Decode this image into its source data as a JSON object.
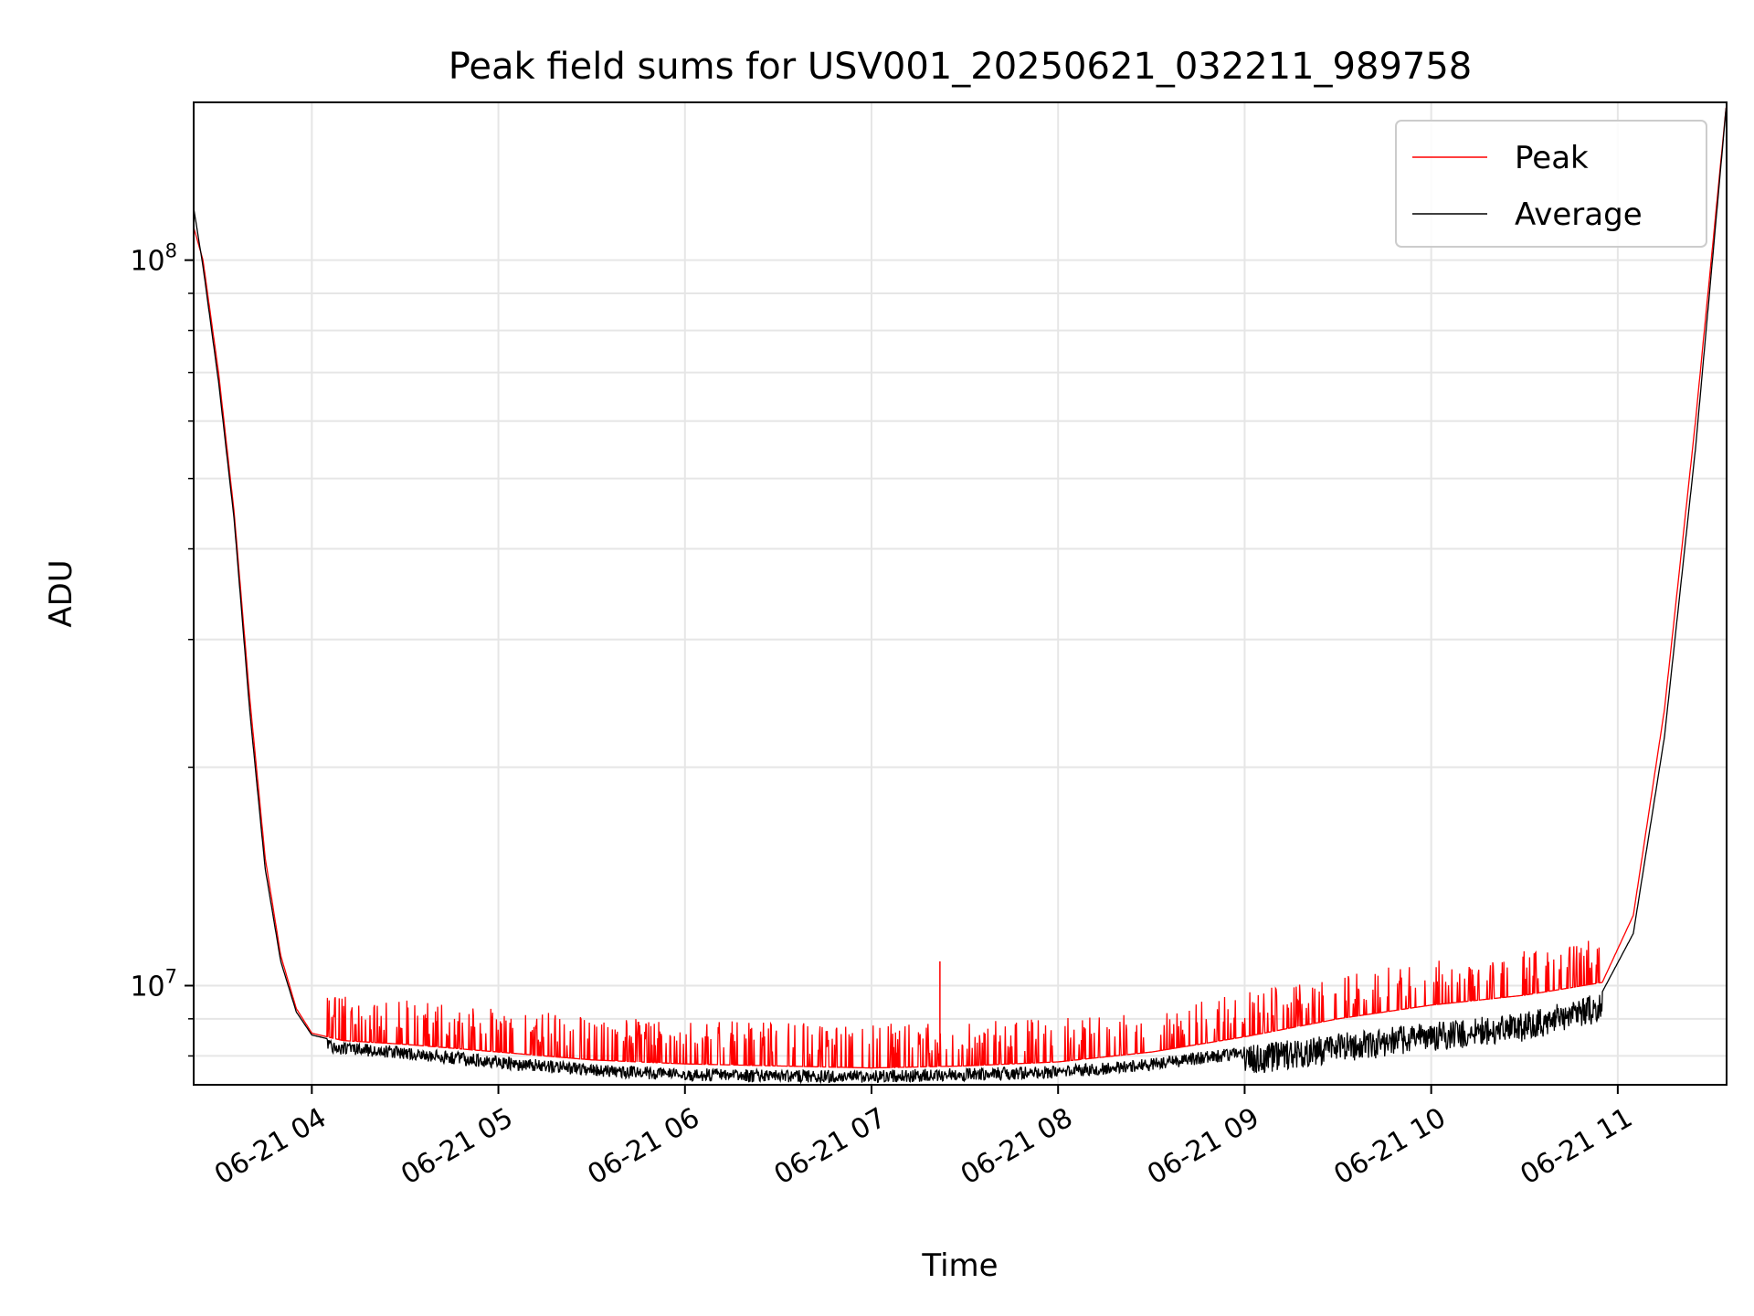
{
  "chart_data": {
    "type": "line",
    "title": "Peak field sums for USV001_20250621_032211_989758",
    "xlabel": "Time",
    "ylabel": "ADU",
    "yscale": "log",
    "grid": true,
    "legend_position": "top-right",
    "xlim": [
      "2025-06-21 03:22",
      "2025-06-21 11:35"
    ],
    "ylim": [
      7300000,
      165000000
    ],
    "x_ticks": [
      {
        "value": "2025-06-21 04:00",
        "label": "06-21 04"
      },
      {
        "value": "2025-06-21 05:00",
        "label": "06-21 05"
      },
      {
        "value": "2025-06-21 06:00",
        "label": "06-21 06"
      },
      {
        "value": "2025-06-21 07:00",
        "label": "06-21 07"
      },
      {
        "value": "2025-06-21 08:00",
        "label": "06-21 08"
      },
      {
        "value": "2025-06-21 09:00",
        "label": "06-21 09"
      },
      {
        "value": "2025-06-21 10:00",
        "label": "06-21 10"
      },
      {
        "value": "2025-06-21 11:00",
        "label": "06-21 11"
      }
    ],
    "y_ticks": [
      {
        "value": 10000000,
        "base": "10",
        "exp": "7"
      },
      {
        "value": 100000000,
        "base": "10",
        "exp": "8"
      }
    ],
    "series": [
      {
        "name": "Peak",
        "color": "#ff0000",
        "x": [
          "2025-06-21 03:22",
          "2025-06-21 03:25",
          "2025-06-21 03:30",
          "2025-06-21 03:35",
          "2025-06-21 03:40",
          "2025-06-21 03:45",
          "2025-06-21 03:50",
          "2025-06-21 03:55",
          "2025-06-21 04:00",
          "2025-06-21 04:10",
          "2025-06-21 04:30",
          "2025-06-21 05:00",
          "2025-06-21 05:30",
          "2025-06-21 06:00",
          "2025-06-21 06:30",
          "2025-06-21 07:00",
          "2025-06-21 07:30",
          "2025-06-21 08:00",
          "2025-06-21 08:30",
          "2025-06-21 09:00",
          "2025-06-21 09:30",
          "2025-06-21 10:00",
          "2025-06-21 10:30",
          "2025-06-21 10:55",
          "2025-06-21 11:05",
          "2025-06-21 11:15",
          "2025-06-21 11:25",
          "2025-06-21 11:35"
        ],
        "y": [
          111000000,
          100000000,
          70000000,
          45000000,
          25000000,
          15000000,
          11000000,
          9300000,
          8600000,
          8400000,
          8300000,
          8100000,
          7900000,
          7800000,
          7750000,
          7700000,
          7750000,
          7850000,
          8100000,
          8500000,
          9000000,
          9400000,
          9700000,
          10100000,
          12500000,
          24000000,
          60000000,
          165000000
        ]
      },
      {
        "name": "Average",
        "color": "#000000",
        "x": [
          "2025-06-21 03:22",
          "2025-06-21 03:25",
          "2025-06-21 03:30",
          "2025-06-21 03:35",
          "2025-06-21 03:40",
          "2025-06-21 03:45",
          "2025-06-21 03:50",
          "2025-06-21 03:55",
          "2025-06-21 04:00",
          "2025-06-21 04:10",
          "2025-06-21 04:30",
          "2025-06-21 05:00",
          "2025-06-21 05:30",
          "2025-06-21 06:00",
          "2025-06-21 06:30",
          "2025-06-21 07:00",
          "2025-06-21 07:30",
          "2025-06-21 08:00",
          "2025-06-21 08:30",
          "2025-06-21 09:00",
          "2025-06-21 09:30",
          "2025-06-21 10:00",
          "2025-06-21 10:30",
          "2025-06-21 10:55",
          "2025-06-21 11:05",
          "2025-06-21 11:15",
          "2025-06-21 11:25",
          "2025-06-21 11:35"
        ],
        "y": [
          118000000,
          98000000,
          68000000,
          44000000,
          24000000,
          14500000,
          10800000,
          9200000,
          8550000,
          8350000,
          8250000,
          8000000,
          7800000,
          7700000,
          7650000,
          7650000,
          7700000,
          7750000,
          7950000,
          8250000,
          8600000,
          8900000,
          9200000,
          9800000,
          11800000,
          22000000,
          55000000,
          165000000
        ]
      }
    ],
    "annotations": [
      {
        "type": "spike",
        "series": "Peak",
        "x": "2025-06-21 07:22",
        "y": 10800000
      }
    ]
  }
}
